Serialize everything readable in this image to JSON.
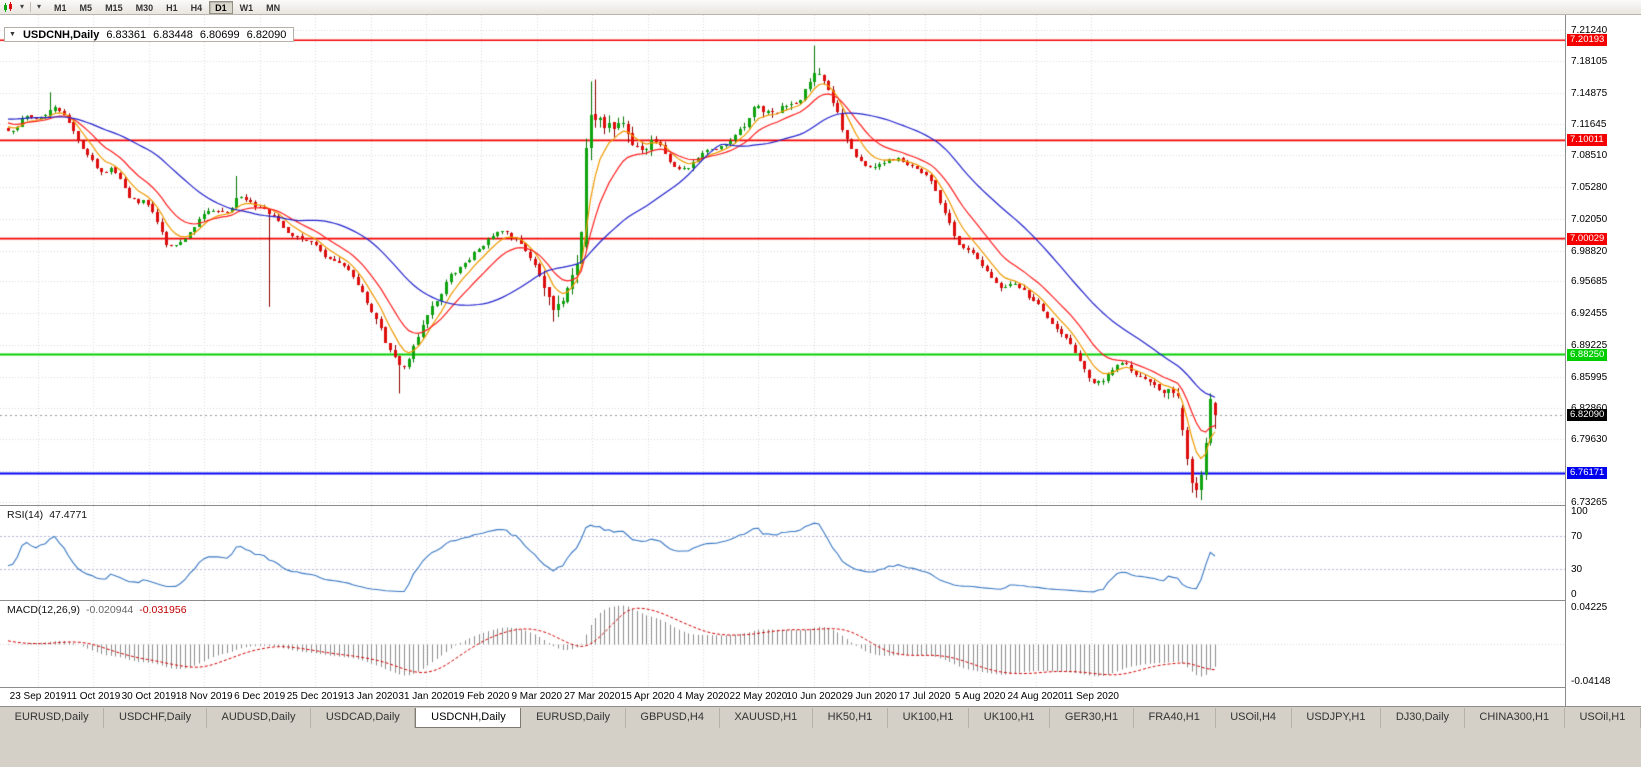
{
  "toolbar": {
    "chevron_glyph": "▾",
    "timeframes": [
      {
        "label": "M1"
      },
      {
        "label": "M5"
      },
      {
        "label": "M15"
      },
      {
        "label": "M30"
      },
      {
        "label": "H1"
      },
      {
        "label": "H4"
      },
      {
        "label": "D1",
        "active": true
      },
      {
        "label": "W1"
      },
      {
        "label": "MN"
      }
    ]
  },
  "chart": {
    "header": {
      "collapse_arrow": "▼",
      "symbol": "USDCNH,Daily",
      "open": "6.83361",
      "high": "6.83448",
      "low": "6.80699",
      "close": "6.82090"
    },
    "price_axis": {
      "ticks": [
        "7.21240",
        "7.18105",
        "7.14875",
        "7.11645",
        "7.08510",
        "7.05280",
        "7.02050",
        "6.98820",
        "6.95685",
        "6.92455",
        "6.89225",
        "6.85995",
        "6.82860",
        "6.79630",
        "6.76400",
        "6.73265"
      ]
    },
    "levels": [
      {
        "label": "7.20193",
        "value": 7.20193,
        "color": "#F40000",
        "width": 1.5
      },
      {
        "label": "7.10011",
        "value": 7.10011,
        "color": "#F40000",
        "width": 1.8
      },
      {
        "label": "7.00029",
        "value": 7.00029,
        "color": "#F40000",
        "width": 1.8
      },
      {
        "label": "6.88250",
        "value": 6.8825,
        "color": "#00CE00",
        "width": 2
      },
      {
        "label": "6.76171",
        "value": 6.76171,
        "color": "#0000F0",
        "width": 2
      }
    ],
    "current_price": {
      "label": "6.82090",
      "value": 6.8209,
      "color": "#000000"
    },
    "date_labels": [
      "23 Sep 2019",
      "11 Oct 2019",
      "30 Oct 2019",
      "18 Nov 2019",
      "6 Dec 2019",
      "25 Dec 2019",
      "13 Jan 2020",
      "31 Jan 2020",
      "19 Feb 2020",
      "9 Mar 2020",
      "27 Mar 2020",
      "15 Apr 2020",
      "4 May 2020",
      "22 May 2020",
      "10 Jun 2020",
      "29 Jun 2020",
      "17 Jul 2020",
      "5 Aug 2020",
      "24 Aug 2020",
      "11 Sep 2020"
    ]
  },
  "rsi": {
    "name": "RSI(14)",
    "value": "47.4771",
    "levels": [
      "100",
      "70",
      "30",
      "0"
    ],
    "upper": 70,
    "lower": 30,
    "color": "#3A78C3"
  },
  "macd": {
    "name": "MACD(12,26,9)",
    "value_main": "-0.020944",
    "value_signal": "-0.031956",
    "axis_max": "0.04225",
    "axis_min": "-0.04148",
    "hist_color": "#8C8C8C",
    "signal_color": "#D00000"
  },
  "tabs": [
    {
      "label": "EURUSD,Daily"
    },
    {
      "label": "USDCHF,Daily"
    },
    {
      "label": "AUDUSD,Daily"
    },
    {
      "label": "USDCAD,Daily"
    },
    {
      "label": "USDCNH,Daily",
      "active": true
    },
    {
      "label": "EURUSD,Daily"
    },
    {
      "label": "GBPUSD,H4"
    },
    {
      "label": "XAUUSD,H1"
    },
    {
      "label": "HK50,H1"
    },
    {
      "label": "UK100,H1"
    },
    {
      "label": "UK100,H1"
    },
    {
      "label": "GER30,H1"
    },
    {
      "label": "FRA40,H1"
    },
    {
      "label": "USOil,H4"
    },
    {
      "label": "USDJPY,H1"
    },
    {
      "label": "DJ30,Daily"
    },
    {
      "label": "CHINA300,H1"
    },
    {
      "label": "USOil,H1"
    }
  ],
  "chart_data": {
    "type": "candlestick",
    "symbol": "USDCNH",
    "timeframe": "Daily",
    "title": "USDCNH,Daily",
    "visible_candles": 260,
    "preroll": 70,
    "base_vol": 0.0042,
    "ylim": [
      6.7296,
      7.2276
    ],
    "horizontal_levels": [
      7.20193,
      7.10011,
      7.00029,
      6.8825,
      6.76171
    ],
    "last_candle_ohlc": {
      "open": 6.83361,
      "high": 6.83448,
      "low": 6.80699,
      "close": 6.8209
    },
    "indicators": {
      "rsi_period": 14,
      "rsi_value": 47.4771,
      "macd_fast": 12,
      "macd_slow": 26,
      "macd_signal": 9,
      "macd_value": -0.020944,
      "macd_signal_value": -0.031956
    },
    "anchors": [
      [
        -70,
        7.06
      ],
      [
        -52,
        7.078
      ],
      [
        -34,
        7.102
      ],
      [
        -16,
        7.138
      ],
      [
        -8,
        7.124
      ],
      [
        0,
        7.108
      ],
      [
        3,
        7.128
      ],
      [
        6,
        7.118
      ],
      [
        9,
        7.138
      ],
      [
        12,
        7.122
      ],
      [
        15,
        7.086
      ],
      [
        19,
        7.068
      ],
      [
        22,
        7.072
      ],
      [
        26,
        7.032
      ],
      [
        29,
        7.04
      ],
      [
        32,
        7.008
      ],
      [
        34,
        6.986
      ],
      [
        36,
        6.992
      ],
      [
        39,
        7.016
      ],
      [
        43,
        7.032
      ],
      [
        47,
        7.026
      ],
      [
        49,
        7.05
      ],
      [
        52,
        7.032
      ],
      [
        56,
        7.024
      ],
      [
        60,
        7.0
      ],
      [
        65,
        6.996
      ],
      [
        69,
        6.976
      ],
      [
        73,
        6.962
      ],
      [
        77,
        6.93
      ],
      [
        81,
        6.884
      ],
      [
        84,
        6.862
      ],
      [
        87,
        6.906
      ],
      [
        91,
        6.936
      ],
      [
        94,
        6.962
      ],
      [
        97,
        6.976
      ],
      [
        101,
        6.996
      ],
      [
        105,
        7.012
      ],
      [
        109,
        6.996
      ],
      [
        112,
        6.976
      ],
      [
        115,
        6.942
      ],
      [
        117,
        6.926
      ],
      [
        120,
        6.956
      ],
      [
        122,
        6.986
      ],
      [
        124,
        7.09
      ],
      [
        126,
        7.128
      ],
      [
        128,
        7.106
      ],
      [
        131,
        7.122
      ],
      [
        134,
        7.082
      ],
      [
        138,
        7.096
      ],
      [
        141,
        7.076
      ],
      [
        144,
        7.066
      ],
      [
        148,
        7.086
      ],
      [
        153,
        7.096
      ],
      [
        157,
        7.116
      ],
      [
        160,
        7.136
      ],
      [
        164,
        7.126
      ],
      [
        168,
        7.142
      ],
      [
        171,
        7.156
      ],
      [
        173,
        7.176
      ],
      [
        175,
        7.146
      ],
      [
        178,
        7.112
      ],
      [
        182,
        7.076
      ],
      [
        185,
        7.07
      ],
      [
        189,
        7.086
      ],
      [
        194,
        7.072
      ],
      [
        197,
        7.062
      ],
      [
        200,
        7.022
      ],
      [
        203,
        6.992
      ],
      [
        206,
        6.985
      ],
      [
        210,
        6.962
      ],
      [
        213,
        6.948
      ],
      [
        216,
        6.958
      ],
      [
        219,
        6.935
      ],
      [
        222,
        6.922
      ],
      [
        226,
        6.902
      ],
      [
        229,
        6.88
      ],
      [
        231,
        6.856
      ],
      [
        233,
        6.846
      ],
      [
        236,
        6.868
      ],
      [
        239,
        6.874
      ],
      [
        242,
        6.856
      ],
      [
        245,
        6.85
      ],
      [
        248,
        6.843
      ],
      [
        250,
        6.846
      ],
      [
        252,
        6.816
      ],
      [
        254,
        6.772
      ],
      [
        255,
        6.75
      ],
      [
        256,
        6.752
      ],
      [
        257,
        6.772
      ],
      [
        258,
        6.81
      ],
      [
        259,
        6.822
      ]
    ],
    "vol_zones": [
      {
        "from": -70,
        "to": -1,
        "vol": 0.005
      },
      {
        "from": 73,
        "to": 95,
        "vol": 0.006
      },
      {
        "from": 115,
        "to": 140,
        "vol": 0.011
      },
      {
        "from": 158,
        "to": 180,
        "vol": 0.0075
      },
      {
        "from": 248,
        "to": 259,
        "vol": 0.008
      }
    ],
    "wick_events": [
      {
        "i": 9,
        "high": 7.149
      },
      {
        "i": 49,
        "high": 7.064
      },
      {
        "i": 56,
        "low": 6.931
      },
      {
        "i": 84,
        "low": 6.843
      },
      {
        "i": 117,
        "low": 6.916
      },
      {
        "i": 126,
        "high": 7.162
      },
      {
        "i": 173,
        "high": 7.1965
      },
      {
        "i": 255,
        "low": 6.737
      },
      {
        "i": 256,
        "low": 6.7345
      }
    ],
    "overrides": [
      {
        "i": 124,
        "open": 6.992,
        "close": 7.092,
        "high": 7.102,
        "low": 6.988
      },
      {
        "i": 125,
        "open": 7.092,
        "close": 7.126,
        "high": 7.16,
        "low": 7.08
      },
      {
        "i": 252,
        "open": 6.828,
        "close": 6.806,
        "high": 6.831,
        "low": 6.8
      },
      {
        "i": 253,
        "open": 6.806,
        "close": 6.776,
        "high": 6.809,
        "low": 6.77
      },
      {
        "i": 254,
        "open": 6.776,
        "close": 6.752,
        "high": 6.779,
        "low": 6.742
      },
      {
        "i": 255,
        "open": 6.752,
        "close": 6.745,
        "high": 6.758,
        "low": 6.737
      },
      {
        "i": 256,
        "open": 6.745,
        "close": 6.76,
        "high": 6.764,
        "low": 6.7345
      },
      {
        "i": 257,
        "open": 6.76,
        "close": 6.793,
        "high": 6.798,
        "low": 6.755
      },
      {
        "i": 258,
        "open": 6.793,
        "close": 6.837,
        "high": 6.843,
        "low": 6.79
      },
      {
        "i": 259,
        "open": 6.83361,
        "close": 6.8209,
        "high": 6.83448,
        "low": 6.80699
      }
    ],
    "moving_averages": [
      {
        "type": "ema",
        "period": 6,
        "color": "#EE9A00",
        "name": "fast-ma"
      },
      {
        "type": "ema",
        "period": 13,
        "color": "#FF2020",
        "name": "mid-ma"
      },
      {
        "type": "sma",
        "period": 30,
        "color": "#2323CD",
        "name": "slow-ma"
      }
    ],
    "candle_colors": {
      "up_fill": "#0FA30F",
      "up_stroke": "#077707",
      "down_fill": "#DE0D0D",
      "down_stroke": "#8F0000"
    }
  }
}
